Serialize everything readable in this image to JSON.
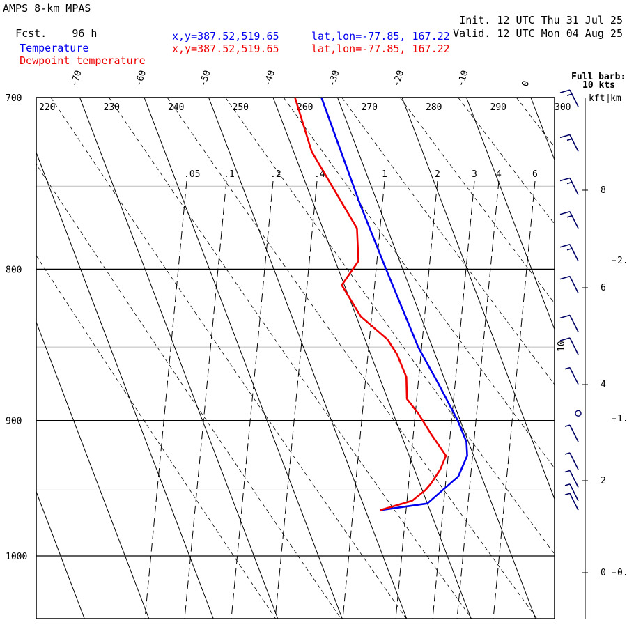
{
  "header": {
    "model": "AMPS 8-km MPAS",
    "fcst_label": "Fcst.",
    "fcst_value": "96 h",
    "init_label": "Init.",
    "init_value": "12 UTC Thu 31 Jul 25",
    "valid_label": "Valid.",
    "valid_value": "12 UTC Mon 04 Aug 25"
  },
  "legend": [
    {
      "name": "Temperature",
      "xy": "x,y=387.52,519.65",
      "latlon": "lat,lon=-77.85, 167.22",
      "color": "#0000ee"
    },
    {
      "name": "Dewpoint temperature",
      "xy": "x,y=387.52,519.65",
      "latlon": "lat,lon=-77.85, 167.22",
      "color": "#ee0000"
    }
  ],
  "barb_note": [
    "Full barb:",
    "10 kts"
  ],
  "height_units": [
    "kft",
    "km"
  ],
  "chart_data": {
    "type": "line",
    "pressure_ticks": [
      700,
      800,
      900,
      1000
    ],
    "pressure_range": [
      700,
      1050
    ],
    "skewed_temperature_labels": [
      -70,
      -60,
      -50,
      -40,
      -30,
      -20,
      -10,
      0
    ],
    "potential_temperature_labels": [
      220,
      230,
      240,
      250,
      260,
      270,
      280,
      290,
      300
    ],
    "mixing_ratio_labels": [
      ".05",
      ".1",
      ".2",
      ".4",
      "1",
      "2",
      "3",
      "4",
      "6"
    ],
    "kft_ticks": [
      8,
      6,
      4,
      2,
      0
    ],
    "km_ticks": [
      "2.",
      "1.",
      "0."
    ],
    "series": [
      {
        "name": "Temperature",
        "color": "#0000ee",
        "pressure": [
          700,
          720,
          760,
          800,
          850,
          875,
          900,
          915,
          925,
          940,
          960,
          965
        ],
        "temperature": [
          -32.5,
          -32.6,
          -32.8,
          -32.6,
          -32.2,
          -31.2,
          -30.4,
          -30.3,
          -31.0,
          -33.6,
          -40.0,
          -47.7
        ]
      },
      {
        "name": "Dewpoint temperature",
        "color": "#ee0000",
        "pressure": [
          700,
          730,
          775,
          795,
          810,
          830,
          845,
          855,
          870,
          885,
          895,
          910,
          925,
          935,
          945,
          950,
          958,
          965
        ],
        "temperature": [
          -36.6,
          -37.2,
          -34.7,
          -36.4,
          -40.4,
          -39.3,
          -36.5,
          -35.9,
          -35.8,
          -37.0,
          -36.1,
          -35.3,
          -34.3,
          -36.0,
          -38.2,
          -39.5,
          -42.2,
          -47.7
        ]
      }
    ],
    "wind_barbs_kts": [
      {
        "pressure": 705,
        "speed": 15
      },
      {
        "pressure": 730,
        "speed": 15
      },
      {
        "pressure": 755,
        "speed": 15
      },
      {
        "pressure": 775,
        "speed": 15
      },
      {
        "pressure": 795,
        "speed": 15
      },
      {
        "pressure": 815,
        "speed": 10
      },
      {
        "pressure": 840,
        "speed": 10
      },
      {
        "pressure": 855,
        "speed": 10
      },
      {
        "pressure": 875,
        "speed": 5
      },
      {
        "pressure": 895,
        "speed": 0
      },
      {
        "pressure": 915,
        "speed": 5
      },
      {
        "pressure": 935,
        "speed": 5
      },
      {
        "pressure": 948,
        "speed": 5
      },
      {
        "pressure": 958,
        "speed": 5
      },
      {
        "pressure": 965,
        "speed": 5
      }
    ],
    "barb_axis_label": "10",
    "grid": true
  }
}
